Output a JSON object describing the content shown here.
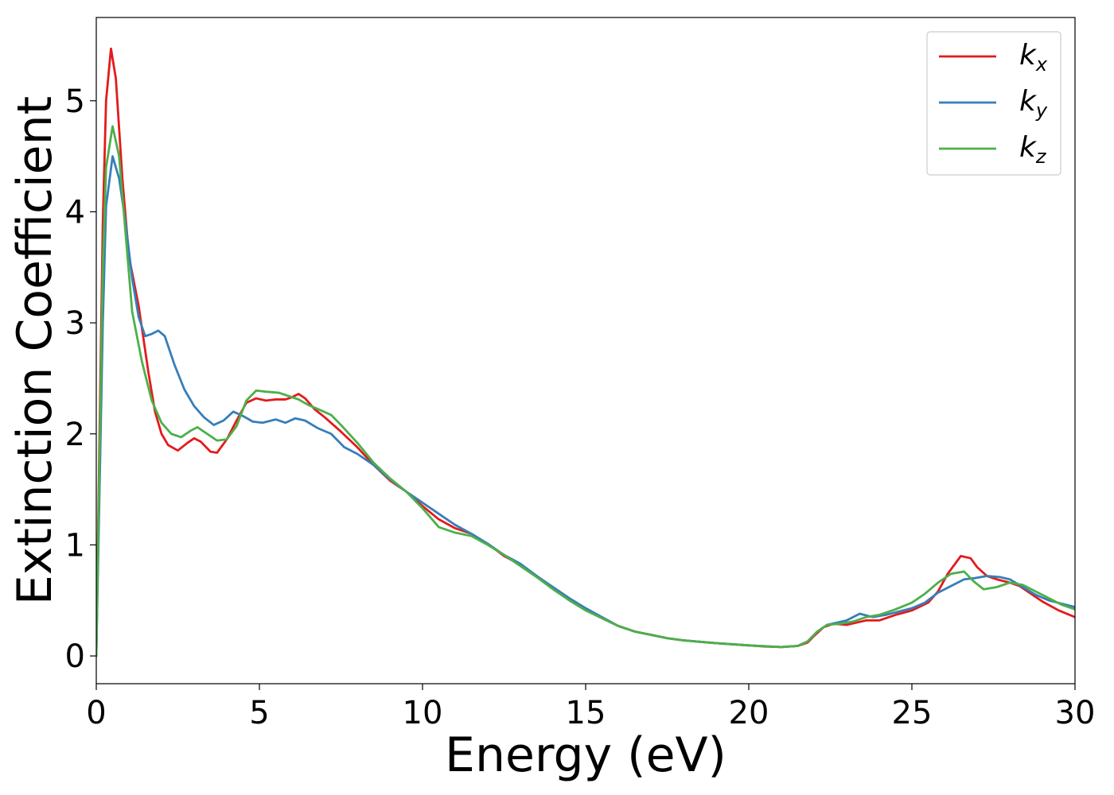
{
  "chart_data": {
    "type": "line",
    "title": "",
    "xlabel": "Energy (eV)",
    "ylabel": "Extinction Coefficient",
    "xlim": [
      0,
      30
    ],
    "ylim": [
      -0.25,
      5.75
    ],
    "xticks": [
      0,
      5,
      10,
      15,
      20,
      25,
      30
    ],
    "yticks": [
      0,
      1,
      2,
      3,
      4,
      5
    ],
    "grid": false,
    "legend_position": "top-right",
    "series": [
      {
        "name": "k",
        "subscript": "x",
        "color": "#e41a1c",
        "points": [
          [
            0,
            0
          ],
          [
            0.1,
            2.0
          ],
          [
            0.2,
            3.9
          ],
          [
            0.3,
            5.0
          ],
          [
            0.45,
            5.47
          ],
          [
            0.6,
            5.2
          ],
          [
            0.8,
            4.3
          ],
          [
            1.0,
            3.6
          ],
          [
            1.3,
            3.15
          ],
          [
            1.6,
            2.55
          ],
          [
            1.8,
            2.2
          ],
          [
            2.0,
            2.0
          ],
          [
            2.2,
            1.9
          ],
          [
            2.5,
            1.85
          ],
          [
            2.8,
            1.92
          ],
          [
            3.0,
            1.96
          ],
          [
            3.2,
            1.93
          ],
          [
            3.5,
            1.84
          ],
          [
            3.7,
            1.83
          ],
          [
            4.0,
            1.95
          ],
          [
            4.3,
            2.12
          ],
          [
            4.6,
            2.28
          ],
          [
            4.9,
            2.32
          ],
          [
            5.2,
            2.3
          ],
          [
            5.5,
            2.31
          ],
          [
            5.8,
            2.31
          ],
          [
            6.0,
            2.33
          ],
          [
            6.2,
            2.36
          ],
          [
            6.4,
            2.32
          ],
          [
            6.7,
            2.22
          ],
          [
            7.0,
            2.15
          ],
          [
            7.5,
            2.02
          ],
          [
            8.0,
            1.88
          ],
          [
            8.5,
            1.72
          ],
          [
            9.0,
            1.58
          ],
          [
            9.5,
            1.48
          ],
          [
            10.0,
            1.35
          ],
          [
            10.5,
            1.23
          ],
          [
            11.0,
            1.15
          ],
          [
            11.5,
            1.1
          ],
          [
            12.0,
            1.01
          ],
          [
            12.5,
            0.9
          ],
          [
            13.0,
            0.82
          ],
          [
            13.5,
            0.72
          ],
          [
            14.0,
            0.61
          ],
          [
            14.5,
            0.51
          ],
          [
            15.0,
            0.42
          ],
          [
            15.5,
            0.34
          ],
          [
            16.0,
            0.27
          ],
          [
            16.5,
            0.22
          ],
          [
            17.0,
            0.19
          ],
          [
            17.5,
            0.16
          ],
          [
            18.0,
            0.14
          ],
          [
            19.0,
            0.115
          ],
          [
            20.0,
            0.095
          ],
          [
            20.5,
            0.085
          ],
          [
            21.0,
            0.08
          ],
          [
            21.5,
            0.09
          ],
          [
            21.8,
            0.12
          ],
          [
            22.0,
            0.18
          ],
          [
            22.3,
            0.26
          ],
          [
            22.6,
            0.29
          ],
          [
            23.0,
            0.28
          ],
          [
            23.3,
            0.3
          ],
          [
            23.6,
            0.32
          ],
          [
            24.0,
            0.32
          ],
          [
            24.5,
            0.37
          ],
          [
            25.0,
            0.41
          ],
          [
            25.5,
            0.48
          ],
          [
            25.8,
            0.58
          ],
          [
            26.1,
            0.74
          ],
          [
            26.5,
            0.9
          ],
          [
            26.8,
            0.88
          ],
          [
            27.0,
            0.8
          ],
          [
            27.3,
            0.72
          ],
          [
            27.6,
            0.69
          ],
          [
            28.0,
            0.66
          ],
          [
            28.3,
            0.63
          ],
          [
            28.6,
            0.57
          ],
          [
            29.0,
            0.49
          ],
          [
            29.5,
            0.41
          ],
          [
            30.0,
            0.35
          ]
        ]
      },
      {
        "name": "k",
        "subscript": "y",
        "color": "#377eb8",
        "points": [
          [
            0,
            0
          ],
          [
            0.1,
            1.5
          ],
          [
            0.2,
            3.0
          ],
          [
            0.3,
            4.05
          ],
          [
            0.5,
            4.5
          ],
          [
            0.7,
            4.3
          ],
          [
            0.9,
            3.9
          ],
          [
            1.1,
            3.4
          ],
          [
            1.3,
            3.05
          ],
          [
            1.5,
            2.88
          ],
          [
            1.7,
            2.9
          ],
          [
            1.9,
            2.93
          ],
          [
            2.1,
            2.88
          ],
          [
            2.4,
            2.62
          ],
          [
            2.7,
            2.4
          ],
          [
            3.0,
            2.25
          ],
          [
            3.3,
            2.15
          ],
          [
            3.6,
            2.08
          ],
          [
            3.9,
            2.12
          ],
          [
            4.2,
            2.2
          ],
          [
            4.5,
            2.16
          ],
          [
            4.8,
            2.11
          ],
          [
            5.1,
            2.1
          ],
          [
            5.5,
            2.13
          ],
          [
            5.8,
            2.1
          ],
          [
            6.1,
            2.14
          ],
          [
            6.4,
            2.12
          ],
          [
            6.8,
            2.05
          ],
          [
            7.2,
            2.0
          ],
          [
            7.6,
            1.88
          ],
          [
            8.0,
            1.82
          ],
          [
            8.5,
            1.72
          ],
          [
            9.0,
            1.59
          ],
          [
            9.5,
            1.48
          ],
          [
            10.0,
            1.38
          ],
          [
            10.5,
            1.28
          ],
          [
            11.0,
            1.18
          ],
          [
            11.5,
            1.1
          ],
          [
            12.0,
            1.01
          ],
          [
            12.5,
            0.91
          ],
          [
            13.0,
            0.83
          ],
          [
            13.5,
            0.72
          ],
          [
            14.0,
            0.62
          ],
          [
            14.5,
            0.52
          ],
          [
            15.0,
            0.43
          ],
          [
            15.5,
            0.35
          ],
          [
            16.0,
            0.27
          ],
          [
            16.5,
            0.22
          ],
          [
            17.0,
            0.19
          ],
          [
            17.5,
            0.16
          ],
          [
            18.0,
            0.14
          ],
          [
            19.0,
            0.115
          ],
          [
            20.0,
            0.095
          ],
          [
            21.0,
            0.08
          ],
          [
            21.5,
            0.09
          ],
          [
            21.8,
            0.13
          ],
          [
            22.1,
            0.22
          ],
          [
            22.4,
            0.28
          ],
          [
            22.7,
            0.3
          ],
          [
            23.0,
            0.32
          ],
          [
            23.4,
            0.38
          ],
          [
            23.8,
            0.35
          ],
          [
            24.2,
            0.37
          ],
          [
            24.6,
            0.4
          ],
          [
            25.0,
            0.43
          ],
          [
            25.4,
            0.48
          ],
          [
            25.8,
            0.57
          ],
          [
            26.2,
            0.63
          ],
          [
            26.6,
            0.69
          ],
          [
            26.9,
            0.7
          ],
          [
            27.3,
            0.72
          ],
          [
            27.7,
            0.71
          ],
          [
            28.0,
            0.69
          ],
          [
            28.4,
            0.62
          ],
          [
            28.8,
            0.55
          ],
          [
            29.2,
            0.5
          ],
          [
            29.6,
            0.47
          ],
          [
            30.0,
            0.44
          ]
        ]
      },
      {
        "name": "k",
        "subscript": "z",
        "color": "#4daf4a",
        "points": [
          [
            0,
            0
          ],
          [
            0.1,
            1.8
          ],
          [
            0.2,
            3.5
          ],
          [
            0.3,
            4.4
          ],
          [
            0.5,
            4.77
          ],
          [
            0.7,
            4.5
          ],
          [
            0.9,
            3.8
          ],
          [
            1.1,
            3.1
          ],
          [
            1.4,
            2.65
          ],
          [
            1.7,
            2.3
          ],
          [
            2.0,
            2.1
          ],
          [
            2.3,
            2.0
          ],
          [
            2.6,
            1.97
          ],
          [
            2.9,
            2.03
          ],
          [
            3.1,
            2.06
          ],
          [
            3.4,
            2.0
          ],
          [
            3.7,
            1.94
          ],
          [
            4.0,
            1.95
          ],
          [
            4.3,
            2.07
          ],
          [
            4.6,
            2.3
          ],
          [
            4.9,
            2.39
          ],
          [
            5.2,
            2.38
          ],
          [
            5.6,
            2.37
          ],
          [
            5.9,
            2.34
          ],
          [
            6.2,
            2.31
          ],
          [
            6.5,
            2.26
          ],
          [
            6.9,
            2.21
          ],
          [
            7.2,
            2.17
          ],
          [
            7.5,
            2.08
          ],
          [
            8.0,
            1.92
          ],
          [
            8.5,
            1.74
          ],
          [
            9.0,
            1.6
          ],
          [
            9.5,
            1.48
          ],
          [
            10.0,
            1.33
          ],
          [
            10.5,
            1.16
          ],
          [
            11.0,
            1.11
          ],
          [
            11.5,
            1.08
          ],
          [
            12.0,
            1.0
          ],
          [
            12.5,
            0.91
          ],
          [
            13.0,
            0.81
          ],
          [
            13.5,
            0.71
          ],
          [
            14.0,
            0.6
          ],
          [
            14.5,
            0.5
          ],
          [
            15.0,
            0.41
          ],
          [
            15.5,
            0.34
          ],
          [
            16.0,
            0.27
          ],
          [
            16.5,
            0.22
          ],
          [
            17.0,
            0.19
          ],
          [
            17.5,
            0.16
          ],
          [
            18.0,
            0.14
          ],
          [
            19.0,
            0.115
          ],
          [
            20.0,
            0.095
          ],
          [
            21.0,
            0.08
          ],
          [
            21.5,
            0.09
          ],
          [
            21.8,
            0.13
          ],
          [
            22.1,
            0.22
          ],
          [
            22.4,
            0.28
          ],
          [
            22.8,
            0.29
          ],
          [
            23.2,
            0.31
          ],
          [
            23.6,
            0.35
          ],
          [
            24.0,
            0.37
          ],
          [
            24.5,
            0.42
          ],
          [
            25.0,
            0.48
          ],
          [
            25.4,
            0.56
          ],
          [
            25.8,
            0.66
          ],
          [
            26.2,
            0.74
          ],
          [
            26.6,
            0.76
          ],
          [
            26.9,
            0.67
          ],
          [
            27.2,
            0.6
          ],
          [
            27.6,
            0.62
          ],
          [
            28.0,
            0.66
          ],
          [
            28.4,
            0.64
          ],
          [
            28.8,
            0.58
          ],
          [
            29.2,
            0.52
          ],
          [
            29.6,
            0.46
          ],
          [
            30.0,
            0.42
          ]
        ]
      }
    ]
  }
}
